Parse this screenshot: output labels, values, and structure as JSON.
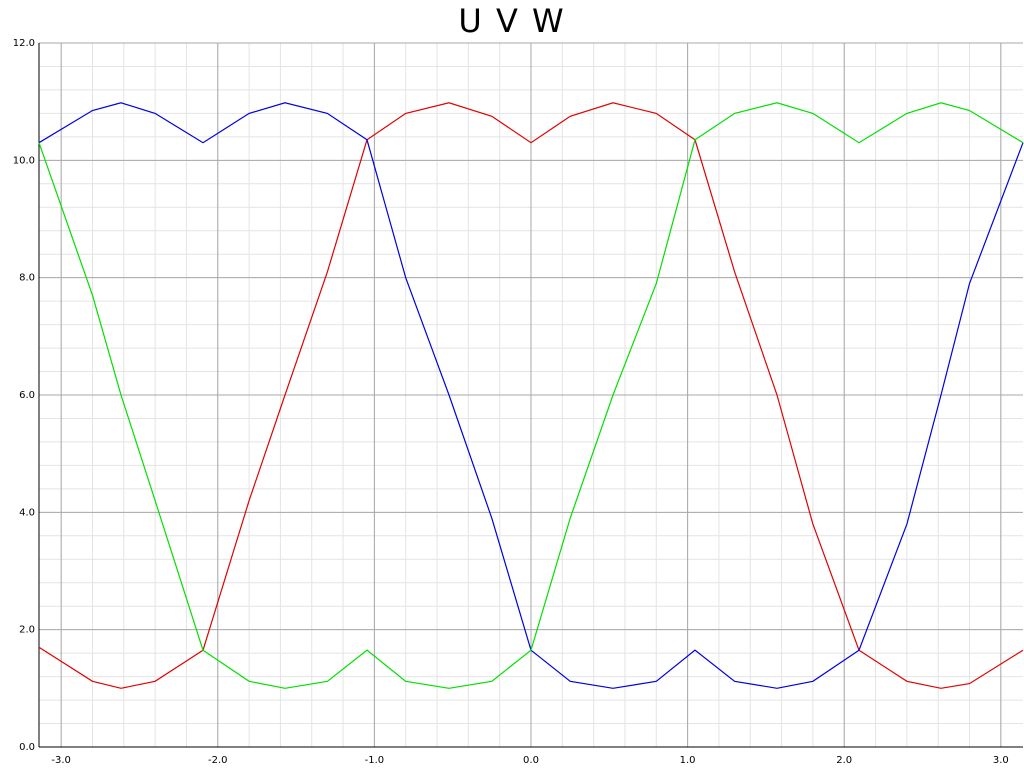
{
  "chart_data": {
    "type": "line",
    "title": "U V W",
    "xlabel": "",
    "ylabel": "",
    "xlim": [
      -3.1416,
      3.1416
    ],
    "ylim": [
      0.0,
      12.0
    ],
    "x_ticks": [
      -3.0,
      -2.0,
      -1.0,
      0.0,
      1.0,
      2.0,
      3.0
    ],
    "x_tick_labels": [
      "-3.0",
      "-2.0",
      "-1.0",
      "0.0",
      "1.0",
      "2.0",
      "3.0"
    ],
    "y_ticks": [
      0,
      2,
      4,
      6,
      8,
      10,
      12
    ],
    "y_tick_labels": [
      "0.0",
      "2.0",
      "4.0",
      "6.0",
      "8.0",
      "10.0",
      "12.0"
    ],
    "grid": true,
    "minor_grid": true,
    "legend": "none",
    "series": [
      {
        "color": "#e00000",
        "x": [
          -3.1416,
          -2.8,
          -2.618,
          -2.4,
          -2.0944,
          -1.8,
          -1.5708,
          -1.3,
          -1.0472,
          -0.8,
          -0.5236,
          -0.25,
          0.0,
          0.25,
          0.5236,
          0.8,
          1.0472,
          1.3,
          1.5708,
          1.8,
          2.0944,
          2.4,
          2.618,
          2.8,
          3.1416
        ],
        "y": [
          1.7,
          1.12,
          1.0,
          1.12,
          1.65,
          4.2,
          6.0,
          8.1,
          10.35,
          10.8,
          10.98,
          10.75,
          10.3,
          10.75,
          10.98,
          10.8,
          10.35,
          8.1,
          6.0,
          3.8,
          1.65,
          1.12,
          1.0,
          1.08,
          1.65
        ]
      },
      {
        "color": "#0000e0",
        "x": [
          -3.1416,
          -2.8,
          -2.618,
          -2.4,
          -2.0944,
          -1.8,
          -1.5708,
          -1.3,
          -1.0472,
          -0.8,
          -0.5236,
          -0.25,
          0.0,
          0.25,
          0.5236,
          0.8,
          1.0472,
          1.3,
          1.5708,
          1.8,
          2.0944,
          2.4,
          2.618,
          2.8,
          3.1416
        ],
        "y": [
          10.3,
          10.85,
          10.98,
          10.8,
          10.3,
          10.8,
          10.98,
          10.8,
          10.35,
          8.0,
          6.0,
          3.9,
          1.65,
          1.12,
          1.0,
          1.12,
          1.65,
          1.12,
          1.0,
          1.12,
          1.65,
          3.8,
          6.0,
          7.9,
          10.3
        ]
      },
      {
        "color": "#00e000",
        "x": [
          -3.1416,
          -2.8,
          -2.618,
          -2.4,
          -2.0944,
          -1.8,
          -1.5708,
          -1.3,
          -1.0472,
          -0.8,
          -0.5236,
          -0.25,
          0.0,
          0.25,
          0.5236,
          0.8,
          1.0472,
          1.3,
          1.5708,
          1.8,
          2.0944,
          2.4,
          2.618,
          2.8,
          3.1416
        ],
        "y": [
          10.3,
          7.7,
          6.0,
          4.2,
          1.65,
          1.12,
          1.0,
          1.12,
          1.65,
          1.12,
          1.0,
          1.12,
          1.65,
          3.9,
          6.0,
          7.9,
          10.35,
          10.8,
          10.98,
          10.8,
          10.3,
          10.8,
          10.98,
          10.85,
          10.3
        ]
      }
    ]
  }
}
